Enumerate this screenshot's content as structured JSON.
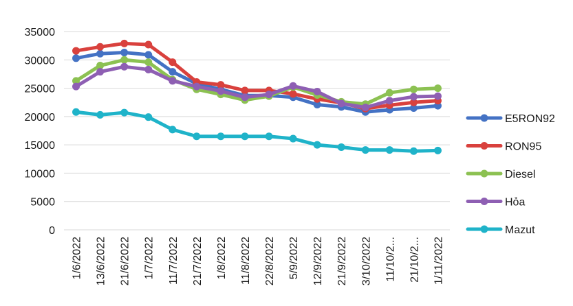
{
  "chart_data": {
    "type": "line",
    "title": "",
    "xlabel": "",
    "ylabel": "",
    "ylim": [
      0,
      35000
    ],
    "yticks": [
      0,
      5000,
      10000,
      15000,
      20000,
      25000,
      30000,
      35000
    ],
    "grid": true,
    "legend_position": "right",
    "categories": [
      "1/6/2022",
      "13/6/2022",
      "21/6/2022",
      "1/7/2022",
      "11/7/2022",
      "21/7/2022",
      "1/8/2022",
      "11/8/2022",
      "22/8/2022",
      "5/9/2022",
      "12/9/2022",
      "21/9/2022",
      "3/10/2022",
      "11/10/2...",
      "21/10/2...",
      "1/11/2022"
    ],
    "series": [
      {
        "name": "E5RON92",
        "color": "#4472c4",
        "values": [
          30300,
          31100,
          31300,
          30900,
          27900,
          25800,
          24800,
          23700,
          23700,
          23400,
          22100,
          21700,
          20800,
          21200,
          21500,
          21900
        ]
      },
      {
        "name": "RON95",
        "color": "#d9413d",
        "values": [
          31600,
          32300,
          32900,
          32700,
          29600,
          26100,
          25600,
          24600,
          24600,
          24000,
          23100,
          22400,
          21400,
          22000,
          22500,
          22800
        ]
      },
      {
        "name": "Diesel",
        "color": "#8cc152",
        "values": [
          26300,
          29000,
          30000,
          29600,
          26500,
          24800,
          23900,
          22900,
          23600,
          25200,
          23800,
          22600,
          22200,
          24200,
          24800,
          25000
        ]
      },
      {
        "name": "Hỏa",
        "color": "#8e5fb3",
        "values": [
          25300,
          27900,
          28800,
          28300,
          26300,
          25300,
          24500,
          23400,
          23900,
          25400,
          24400,
          22300,
          21600,
          22800,
          23500,
          23600
        ]
      },
      {
        "name": "Mazut",
        "color": "#1fb3c9",
        "values": [
          20800,
          20300,
          20700,
          19900,
          17700,
          16500,
          16500,
          16500,
          16500,
          16100,
          15000,
          14600,
          14100,
          14100,
          13900,
          14000
        ]
      }
    ]
  }
}
